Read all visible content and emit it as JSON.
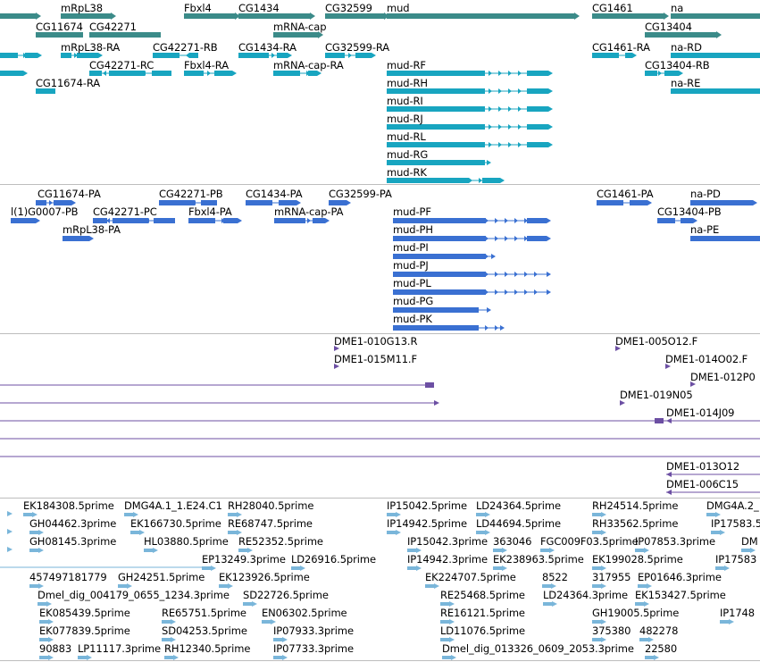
{
  "colors": {
    "gene": "#3b8b89",
    "rna": "#18a5c0",
    "protein": "#3a70d2",
    "clone": "#6c4fa3",
    "est": "#7ab6da",
    "separator": "#bdbdbd"
  },
  "tracks": {
    "genes": [
      {
        "name": "mRpL38",
        "label": "mRpL38"
      },
      {
        "name": "fbxl4",
        "label": "Fbxl4"
      },
      {
        "name": "cg1434",
        "label": "CG1434"
      },
      {
        "name": "cg32599",
        "label": "CG32599"
      },
      {
        "name": "mud",
        "label": "mud"
      },
      {
        "name": "cg1461",
        "label": "CG1461"
      },
      {
        "name": "na",
        "label": "na"
      },
      {
        "name": "cg11674",
        "label": "CG11674"
      },
      {
        "name": "cg42271",
        "label": "CG42271"
      },
      {
        "name": "mrna-cap",
        "label": "mRNA-cap"
      },
      {
        "name": "cg13404",
        "label": "CG13404"
      }
    ],
    "transcripts": [
      {
        "name": "mrpl38-ra",
        "label": "mRpL38-RA"
      },
      {
        "name": "cg42271-rb",
        "label": "CG42271-RB"
      },
      {
        "name": "cg1434-ra",
        "label": "CG1434-RA"
      },
      {
        "name": "cg32599-ra",
        "label": "CG32599-RA"
      },
      {
        "name": "cg1461-ra",
        "label": "CG1461-RA"
      },
      {
        "name": "na-rd",
        "label": "na-RD"
      },
      {
        "name": "cg42271-rc",
        "label": "CG42271-RC"
      },
      {
        "name": "fbxl4-ra",
        "label": "Fbxl4-RA"
      },
      {
        "name": "mrna-cap-ra",
        "label": "mRNA-cap-RA"
      },
      {
        "name": "mud-rf",
        "label": "mud-RF"
      },
      {
        "name": "cg13404-rb",
        "label": "CG13404-RB"
      },
      {
        "name": "cg11674-ra",
        "label": "CG11674-RA"
      },
      {
        "name": "mud-rh",
        "label": "mud-RH"
      },
      {
        "name": "na-re",
        "label": "na-RE"
      },
      {
        "name": "mud-ri",
        "label": "mud-RI"
      },
      {
        "name": "mud-rj",
        "label": "mud-RJ"
      },
      {
        "name": "mud-rl",
        "label": "mud-RL"
      },
      {
        "name": "mud-rg",
        "label": "mud-RG"
      },
      {
        "name": "mud-rk",
        "label": "mud-RK"
      }
    ],
    "proteins": [
      {
        "name": "cg11674-pa",
        "label": "CG11674-PA"
      },
      {
        "name": "cg42271-pb",
        "label": "CG42271-PB"
      },
      {
        "name": "cg1434-pa",
        "label": "CG1434-PA"
      },
      {
        "name": "cg32599-pa",
        "label": "CG32599-PA"
      },
      {
        "name": "cg1461-pa",
        "label": "CG1461-PA"
      },
      {
        "name": "na-pd",
        "label": "na-PD"
      },
      {
        "name": "l1g0007-pb",
        "label": "l(1)G0007-PB"
      },
      {
        "name": "cg42271-pc",
        "label": "CG42271-PC"
      },
      {
        "name": "fbxl4-pa",
        "label": "Fbxl4-PA"
      },
      {
        "name": "mrna-cap-pa",
        "label": "mRNA-cap-PA"
      },
      {
        "name": "mud-pf",
        "label": "mud-PF"
      },
      {
        "name": "cg13404-pb",
        "label": "CG13404-PB"
      },
      {
        "name": "mrpl38-pa",
        "label": "mRpL38-PA"
      },
      {
        "name": "mud-ph",
        "label": "mud-PH"
      },
      {
        "name": "na-pe",
        "label": "na-PE"
      },
      {
        "name": "mud-pi",
        "label": "mud-PI"
      },
      {
        "name": "mud-pj",
        "label": "mud-PJ"
      },
      {
        "name": "mud-pl",
        "label": "mud-PL"
      },
      {
        "name": "mud-pg",
        "label": "mud-PG"
      },
      {
        "name": "mud-pk",
        "label": "mud-PK"
      }
    ],
    "clones": [
      {
        "name": "dme1-010g13",
        "label": "DME1-010G13.R"
      },
      {
        "name": "dme1-005o12",
        "label": "DME1-005O12.F"
      },
      {
        "name": "dme1-015m11",
        "label": "DME1-015M11.F"
      },
      {
        "name": "dme1-014o02",
        "label": "DME1-014O02.F"
      },
      {
        "name": "dme1-012p0",
        "label": "DME1-012P0"
      },
      {
        "name": "dme1-019n05",
        "label": "DME1-019N05"
      },
      {
        "name": "dme1-014j09",
        "label": "DME1-014J09"
      },
      {
        "name": "dme1-013o12",
        "label": "DME1-013O12"
      },
      {
        "name": "dme1-006c15",
        "label": "DME1-006C15"
      }
    ],
    "ests": [
      {
        "name": "ek184308",
        "label": "EK184308.5prime"
      },
      {
        "name": "dmg4a-1",
        "label": "DMG4A.1_1.E24.C1"
      },
      {
        "name": "rh28040",
        "label": "RH28040.5prime"
      },
      {
        "name": "ip15042-a",
        "label": "IP15042.5prime"
      },
      {
        "name": "ld24364-a",
        "label": "LD24364.5prime"
      },
      {
        "name": "rh24514",
        "label": "RH24514.5prime"
      },
      {
        "name": "dmg4a-2",
        "label": "DMG4A.2_"
      },
      {
        "name": "gh04462",
        "label": "GH04462.3prime"
      },
      {
        "name": "ek166730",
        "label": "EK166730.5prime"
      },
      {
        "name": "re68747",
        "label": "RE68747.5prime"
      },
      {
        "name": "ip14942-a",
        "label": "IP14942.5prime"
      },
      {
        "name": "ld44694",
        "label": "LD44694.5prime"
      },
      {
        "name": "rh33562",
        "label": "RH33562.5prime"
      },
      {
        "name": "ip17583-a",
        "label": "IP17583.5"
      },
      {
        "name": "gh08145",
        "label": "GH08145.3prime"
      },
      {
        "name": "hl03880",
        "label": "HL03880.5prime"
      },
      {
        "name": "re52352",
        "label": "RE52352.5prime"
      },
      {
        "name": "ip15042-b",
        "label": "IP15042.3prime"
      },
      {
        "name": "n363046",
        "label": "363046"
      },
      {
        "name": "fgc009f03",
        "label": "FGC009F03.5prime"
      },
      {
        "name": "ip07853",
        "label": "IP07853.3prime"
      },
      {
        "name": "dm-cut",
        "label": "DM"
      },
      {
        "name": "ep13249",
        "label": "EP13249.3prime"
      },
      {
        "name": "ld26916",
        "label": "LD26916.5prime"
      },
      {
        "name": "ip14942-b",
        "label": "IP14942.3prime"
      },
      {
        "name": "ek238963",
        "label": "EK238963.5prime"
      },
      {
        "name": "ek199028",
        "label": "EK199028.5prime"
      },
      {
        "name": "ip17583-b",
        "label": "IP17583"
      },
      {
        "name": "n457497181779",
        "label": "457497181779"
      },
      {
        "name": "gh24251",
        "label": "GH24251.5prime"
      },
      {
        "name": "ek123926",
        "label": "EK123926.5prime"
      },
      {
        "name": "ek224707",
        "label": "EK224707.5prime"
      },
      {
        "name": "n8522",
        "label": "8522"
      },
      {
        "name": "n317955",
        "label": "317955"
      },
      {
        "name": "ep01646",
        "label": "EP01646.3prime"
      },
      {
        "name": "dmel-dig-004179",
        "label": "Dmel_dig_004179_0655_1234.3prime"
      },
      {
        "name": "sd22726",
        "label": "SD22726.5prime"
      },
      {
        "name": "re25468",
        "label": "RE25468.5prime"
      },
      {
        "name": "ld24364-b",
        "label": "LD24364.3prime"
      },
      {
        "name": "ek153427",
        "label": "EK153427.5prime"
      },
      {
        "name": "ek085439",
        "label": "EK085439.5prime"
      },
      {
        "name": "re65751",
        "label": "RE65751.5prime"
      },
      {
        "name": "en06302",
        "label": "EN06302.5prime"
      },
      {
        "name": "re16121",
        "label": "RE16121.5prime"
      },
      {
        "name": "gh19005",
        "label": "GH19005.5prime"
      },
      {
        "name": "ip1748",
        "label": "IP1748"
      },
      {
        "name": "ek077839",
        "label": "EK077839.5prime"
      },
      {
        "name": "sd04253",
        "label": "SD04253.5prime"
      },
      {
        "name": "ip07933",
        "label": "IP07933.3prime"
      },
      {
        "name": "ld11076",
        "label": "LD11076.5prime"
      },
      {
        "name": "n375380",
        "label": "375380"
      },
      {
        "name": "n482278",
        "label": "482278"
      },
      {
        "name": "n90883",
        "label": "90883"
      },
      {
        "name": "lp11117",
        "label": "LP11117.3prime"
      },
      {
        "name": "rh12340",
        "label": "RH12340.5prime"
      },
      {
        "name": "ip07733",
        "label": "IP07733.3prime"
      },
      {
        "name": "dmel-dig-013326",
        "label": "Dmel_dig_013326_0609_2053.3prime"
      },
      {
        "name": "n22580",
        "label": "22580"
      }
    ]
  }
}
